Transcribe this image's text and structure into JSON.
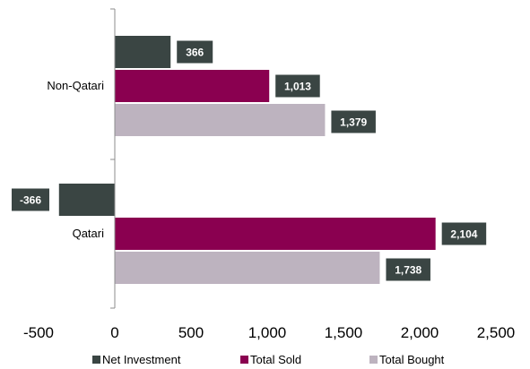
{
  "chart_data": {
    "type": "bar",
    "orientation": "horizontal",
    "categories": [
      "Non-Qatari",
      "Qatari"
    ],
    "series": [
      {
        "name": "Net Investment",
        "color": "#3a4543",
        "values": [
          366,
          -366
        ],
        "labels": [
          "366",
          "-366"
        ]
      },
      {
        "name": "Total Sold",
        "color": "#8a0050",
        "values": [
          1013,
          2104
        ],
        "labels": [
          "1,013",
          "2,104"
        ]
      },
      {
        "name": "Total Bought",
        "color": "#bdb3bf",
        "values": [
          1379,
          1738
        ],
        "labels": [
          "1,379",
          "1,738"
        ]
      }
    ],
    "xlim": [
      -500,
      2500
    ],
    "xticks": [
      -500,
      0,
      500,
      1000,
      1500,
      2000,
      2500
    ],
    "xtick_labels": [
      "-500",
      "0",
      "500",
      "1,000",
      "1,500",
      "2,000",
      "2,500"
    ],
    "label_box_color": "#3a4543",
    "legend_position": "bottom",
    "grid": false,
    "title": "",
    "xlabel": "",
    "ylabel": ""
  }
}
